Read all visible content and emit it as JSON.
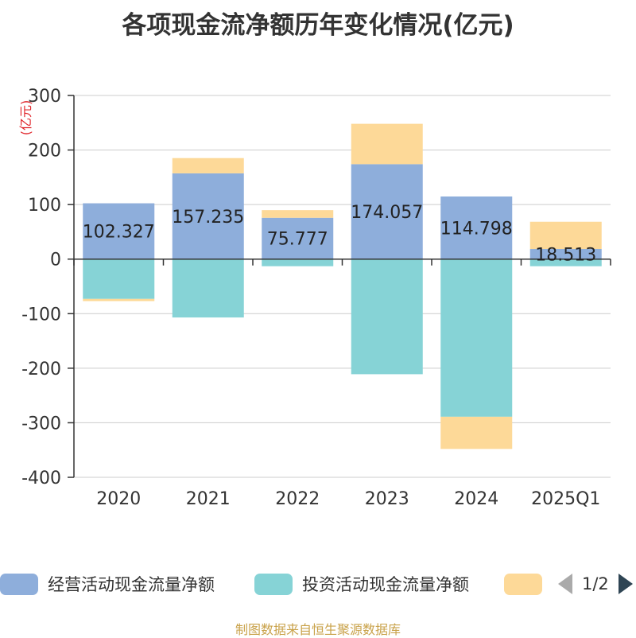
{
  "title": "各项现金流净额历年变化情况(亿元)",
  "source": "制图数据来自恒生聚源数据库",
  "legend": {
    "items": [
      {
        "label": "经营活动现金流量净额",
        "color": "#8eaedb"
      },
      {
        "label": "投资活动现金流量净额",
        "color": "#86d3d6"
      },
      {
        "label": "",
        "color": "#fdd998"
      }
    ],
    "page": "1/2"
  },
  "chart_data": {
    "type": "bar",
    "stacked": true,
    "ylabel": "(亿元)",
    "ylim": [
      -400,
      300
    ],
    "yticks": [
      300,
      200,
      100,
      0,
      -100,
      -200,
      -300,
      -400
    ],
    "categories": [
      "2020",
      "2021",
      "2022",
      "2023",
      "2024",
      "2025Q1"
    ],
    "series": [
      {
        "name": "经营活动现金流量净额",
        "color": "#8eaedb",
        "values": [
          102.327,
          157.235,
          75.777,
          174.057,
          114.798,
          18.513
        ]
      },
      {
        "name": "投资活动现金流量净额",
        "color": "#86d3d6",
        "values": [
          -73,
          -107,
          -13,
          -211,
          -289,
          -13
        ]
      },
      {
        "color": "#fdd998",
        "values": [
          -4,
          28,
          14,
          74,
          -59,
          50
        ]
      }
    ],
    "data_labels": [
      "102.327",
      "157.235",
      "75.777",
      "174.057",
      "114.798",
      "18.513"
    ],
    "grid": true
  }
}
